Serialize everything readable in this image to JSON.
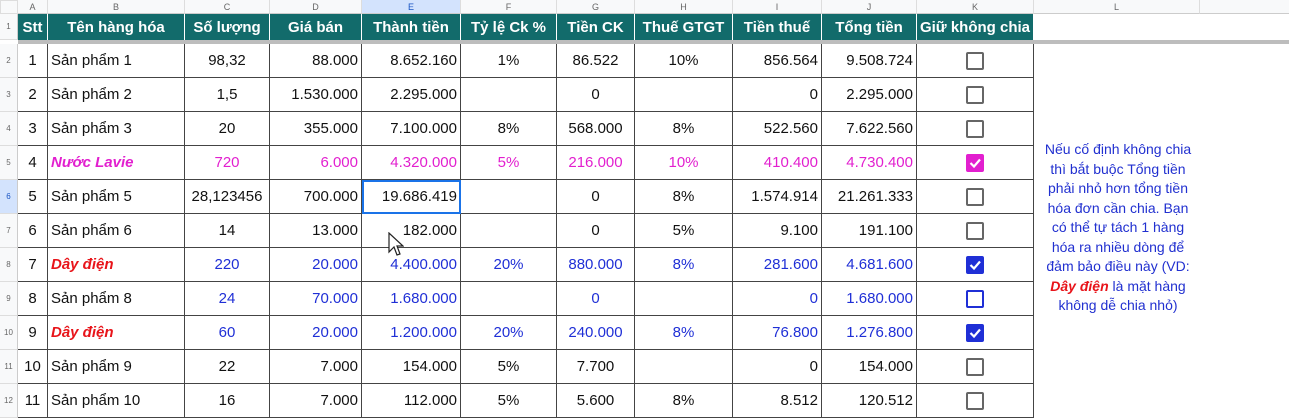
{
  "column_letters": [
    "A",
    "B",
    "C",
    "D",
    "E",
    "F",
    "G",
    "H",
    "I",
    "J",
    "K",
    "L"
  ],
  "row_numbers": [
    "1",
    "2",
    "3",
    "4",
    "5",
    "6",
    "7",
    "8",
    "9",
    "10",
    "11",
    "12"
  ],
  "header": [
    "Stt",
    "Tên hàng hóa",
    "Số lượng",
    "Giá bán",
    "Thành tiền",
    "Tỷ lệ Ck %",
    "Tiền CK",
    "Thuế GTGT",
    "Tiền thuế",
    "Tổng tiền",
    "Giữ không chia"
  ],
  "table": {
    "rows": [
      {
        "cells": [
          "1",
          "Sản phẩm 1",
          "98,32",
          "88.000",
          "8.652.160",
          "1%",
          "86.522",
          "10%",
          "856.564",
          "9.508.724"
        ],
        "checked": false,
        "color": null,
        "name_color": null
      },
      {
        "cells": [
          "2",
          "Sản phẩm 2",
          "1,5",
          "1.530.000",
          "2.295.000",
          null,
          "0",
          null,
          "0",
          "2.295.000"
        ],
        "checked": false,
        "color": null,
        "name_color": null
      },
      {
        "cells": [
          "3",
          "Sản phẩm 3",
          "20",
          "355.000",
          "7.100.000",
          "8%",
          "568.000",
          "8%",
          "522.560",
          "7.622.560"
        ],
        "checked": false,
        "color": null,
        "name_color": null
      },
      {
        "cells": [
          "4",
          "Nước Lavie",
          "720",
          "6.000",
          "4.320.000",
          "5%",
          "216.000",
          "10%",
          "410.400",
          "4.730.400"
        ],
        "checked": true,
        "color": "#e21fcf",
        "name_color": "#e21fcf"
      },
      {
        "cells": [
          "5",
          "Sản phẩm 5",
          "28,123456",
          "700.000",
          "19.686.419",
          null,
          "0",
          "8%",
          "1.574.914",
          "21.261.333"
        ],
        "checked": false,
        "color": null,
        "name_color": null
      },
      {
        "cells": [
          "6",
          "Sản phẩm 6",
          "14",
          "13.000",
          "182.000",
          null,
          "0",
          "5%",
          "9.100",
          "191.100"
        ],
        "checked": false,
        "color": null,
        "name_color": null
      },
      {
        "cells": [
          "7",
          "Dây điện",
          "220",
          "20.000",
          "4.400.000",
          "20%",
          "880.000",
          "8%",
          "281.600",
          "4.681.600"
        ],
        "checked": true,
        "color": "#1f2fd6",
        "name_color": "#e8141a"
      },
      {
        "cells": [
          "8",
          "Sản phẩm 8",
          "24",
          "70.000",
          "1.680.000",
          null,
          "0",
          null,
          "0",
          "1.680.000"
        ],
        "checked": false,
        "color": "#1f2fd6",
        "name_color": null
      },
      {
        "cells": [
          "9",
          "Dây điện",
          "60",
          "20.000",
          "1.200.000",
          "20%",
          "240.000",
          "8%",
          "76.800",
          "1.276.800"
        ],
        "checked": true,
        "color": "#1f2fd6",
        "name_color": "#e8141a"
      },
      {
        "cells": [
          "10",
          "Sản phẩm 9",
          "22",
          "7.000",
          "154.000",
          "5%",
          "7.700",
          null,
          "0",
          "154.000"
        ],
        "checked": false,
        "color": null,
        "name_color": null
      },
      {
        "cells": [
          "11",
          "Sản phẩm 10",
          "16",
          "7.000",
          "112.000",
          "5%",
          "5.600",
          "8%",
          "8.512",
          "120.512"
        ],
        "checked": false,
        "color": null,
        "name_color": null
      }
    ]
  },
  "note": {
    "before": "Nếu cố định không chia thì bắt buộc Tổng tiền phải nhỏ hơn tổng tiền hóa đơn cần chia. Bạn có thể tự tách 1 hàng hóa ra nhiều dòng để đảm bảo điều này (VD:",
    "highlight": "Dây điện",
    "after": "là mặt hàng không dễ chia nhỏ)"
  }
}
